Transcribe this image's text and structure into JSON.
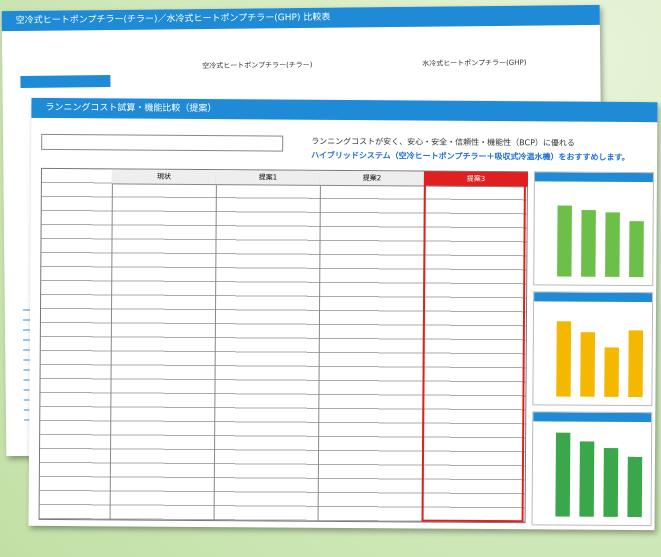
{
  "back_page": {
    "title": "空冷式ヒートポンプチラー(チラー)／水冷式ヒートポンプチラー(GHP) 比較表",
    "columns": [
      "空冷式ヒートポンプチラー(チラー)",
      "水冷式ヒートポンプチラー(GHP)"
    ]
  },
  "front_page": {
    "title": "ランニングコスト試算・機能比較（提案）",
    "lead": "ランニングコストが安く、安心・安全・信頼性・機能性（BCP）に優れる",
    "highlight": "ハイブリッドシステム（空冷ヒートポンプチラー＋吸収式冷温水機）をおすすめします。",
    "table": {
      "columns": [
        "現状",
        "提案1",
        "提案2",
        "提案3"
      ]
    },
    "charts": [
      {
        "color": "#6cc04a",
        "ylim": [
          0,
          4000
        ],
        "values": [
          3300,
          3100,
          3000,
          2600
        ]
      },
      {
        "color": "#f5b800",
        "ylim": [
          0,
          4000
        ],
        "values": [
          3500,
          3000,
          2300,
          3100
        ]
      },
      {
        "color": "#3aa84a",
        "ylim": [
          0,
          4000
        ],
        "values": [
          3900,
          3500,
          3200,
          2800
        ]
      }
    ]
  }
}
